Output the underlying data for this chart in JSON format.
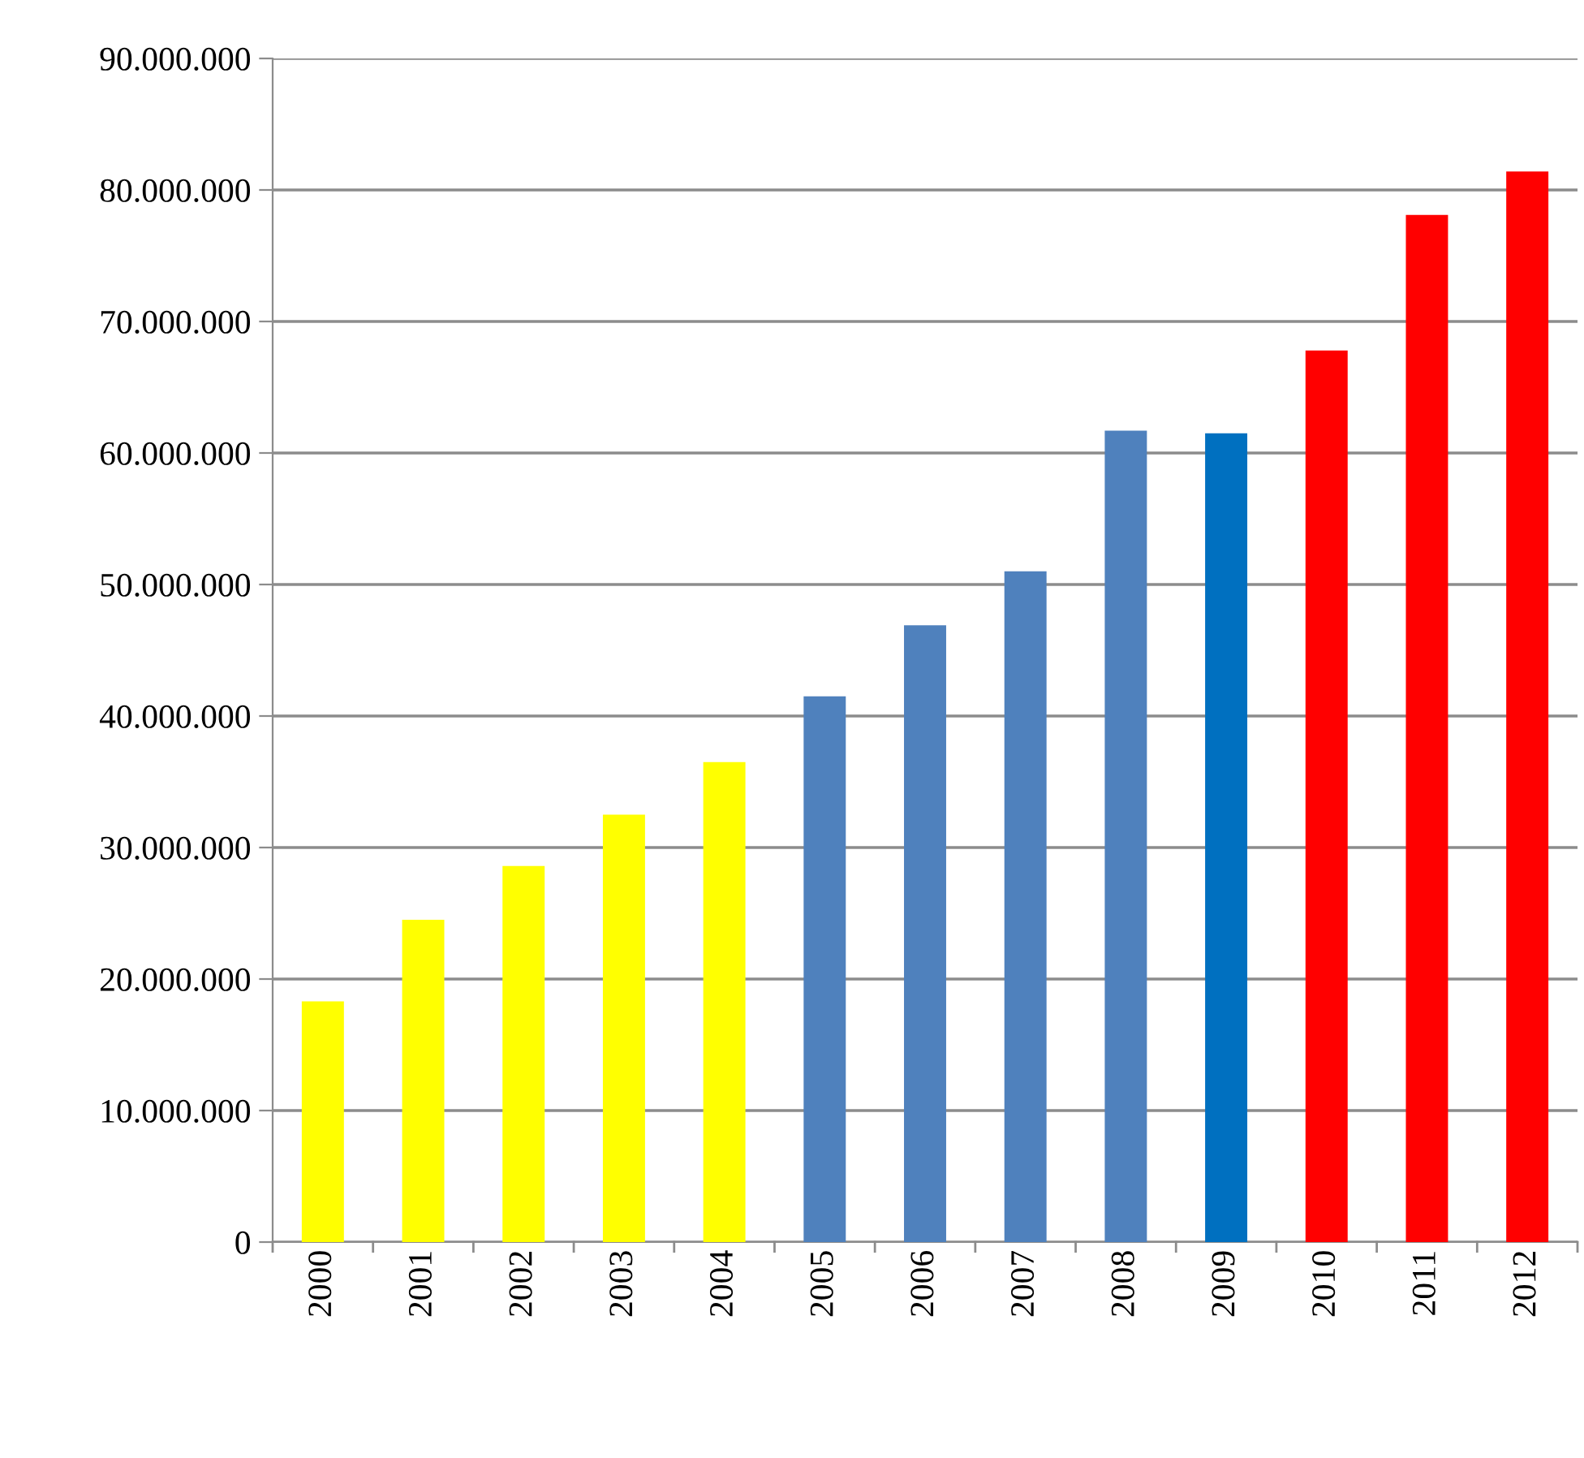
{
  "chart_data": {
    "type": "bar",
    "categories": [
      "2000",
      "2001",
      "2002",
      "2003",
      "2004",
      "2005",
      "2006",
      "2007",
      "2008",
      "2009",
      "2010",
      "2011",
      "2012"
    ],
    "values": [
      18300000,
      24500000,
      28600000,
      32500000,
      36500000,
      41500000,
      46900000,
      51000000,
      61700000,
      61500000,
      67800000,
      78100000,
      81400000
    ],
    "colors": [
      "#ffff00",
      "#ffff00",
      "#ffff00",
      "#ffff00",
      "#ffff00",
      "#4f81bd",
      "#4f81bd",
      "#4f81bd",
      "#4f81bd",
      "#0070c0",
      "#ff0000",
      "#ff0000",
      "#ff0000"
    ],
    "ylim": [
      0,
      90000000
    ],
    "yticks": [
      {
        "value": 0,
        "label": "0"
      },
      {
        "value": 10000000,
        "label": "10.000.000"
      },
      {
        "value": 20000000,
        "label": "20.000.000"
      },
      {
        "value": 30000000,
        "label": "30.000.000"
      },
      {
        "value": 40000000,
        "label": "40.000.000"
      },
      {
        "value": 50000000,
        "label": "50.000.000"
      },
      {
        "value": 60000000,
        "label": "60.000.000"
      },
      {
        "value": 70000000,
        "label": "70.000.000"
      },
      {
        "value": 80000000,
        "label": "80.000.000"
      },
      {
        "value": 90000000,
        "label": "90.000.000"
      }
    ],
    "grid": "y"
  }
}
